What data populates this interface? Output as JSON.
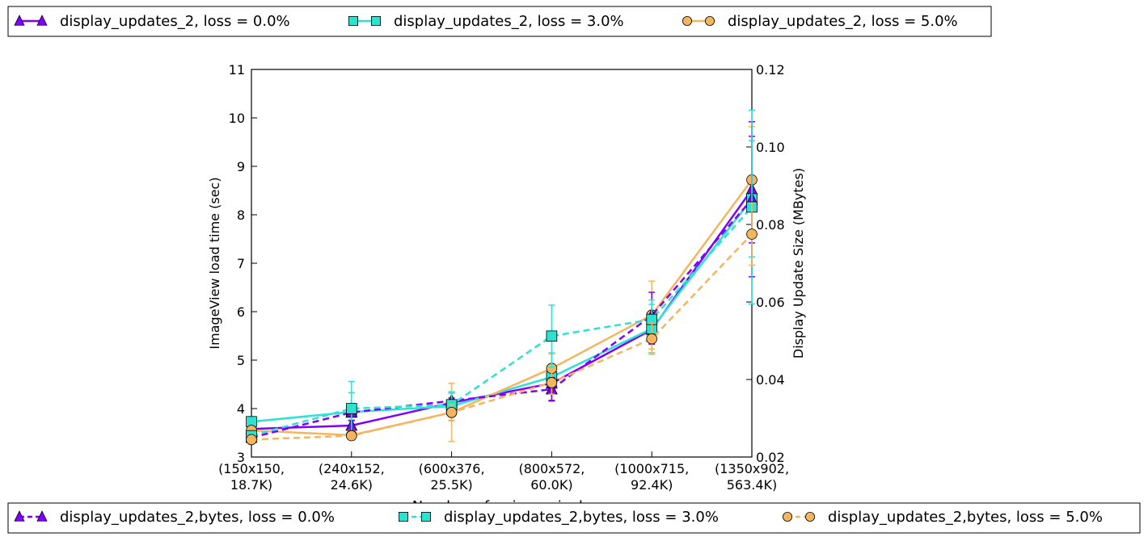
{
  "chart_data": {
    "type": "line",
    "title": "",
    "xlabel": "Number of unique pixels",
    "ylabel": "ImageView load time (sec)",
    "y2label": "Display Update Size (MBytes)",
    "categories": [
      [
        "(150x150,",
        "18.7K)"
      ],
      [
        "(240x152,",
        "24.6K)"
      ],
      [
        "(600x376,",
        "25.5K)"
      ],
      [
        "(800x572,",
        "60.0K)"
      ],
      [
        "(1000x715,",
        "92.4K)"
      ],
      [
        "(1350x902,",
        "563.4K)"
      ]
    ],
    "ylim": [
      3,
      11
    ],
    "y_ticks": [
      "3",
      "4",
      "5",
      "6",
      "7",
      "8",
      "9",
      "10",
      "11"
    ],
    "y2lim": [
      0.02,
      0.12
    ],
    "y2_ticks": [
      "0.02",
      "0.04",
      "0.06",
      "0.08",
      "0.10",
      "0.12"
    ],
    "grid": false,
    "series": [
      {
        "name": "display_updates_2, loss = 0.0%",
        "axis": "left",
        "style": "solid",
        "marker": "triangle",
        "color": "#8000ff",
        "values": [
          3.58,
          3.65,
          4.12,
          4.52,
          5.63,
          8.52
        ],
        "err": [
          0.05,
          0.1,
          0.1,
          0.35,
          0.3,
          1.1
        ]
      },
      {
        "name": "display_updates_2, loss = 3.0%",
        "axis": "left",
        "style": "solid",
        "marker": "square",
        "color": "#2de2d0",
        "values": [
          3.73,
          3.93,
          4.05,
          4.65,
          5.65,
          8.33
        ],
        "err": [
          0.1,
          0.4,
          0.3,
          0.5,
          0.5,
          1.2
        ]
      },
      {
        "name": "display_updates_2, loss = 5.0%",
        "axis": "left",
        "style": "solid",
        "marker": "circle",
        "color": "#f5b55e",
        "values": [
          3.55,
          3.45,
          3.92,
          4.83,
          5.93,
          8.72
        ],
        "err": [
          0.05,
          0.1,
          0.6,
          0.3,
          0.7,
          1.1
        ]
      },
      {
        "name": "display_updates_2,bytes, loss = 0.0%",
        "axis": "right",
        "style": "dashed",
        "marker": "triangle",
        "color": "#8000ff",
        "values": [
          0.025,
          0.0315,
          0.0345,
          0.0375,
          0.0565,
          0.0865
        ],
        "err": [
          0.001,
          0.002,
          0.002,
          0.003,
          0.006,
          0.02
        ]
      },
      {
        "name": "display_updates_2,bytes, loss = 3.0%",
        "axis": "right",
        "style": "dashed",
        "marker": "square",
        "color": "#2de2d0",
        "values": [
          0.0255,
          0.0325,
          0.0335,
          0.0512,
          0.0555,
          0.0845
        ],
        "err": [
          0.001,
          0.007,
          0.003,
          0.008,
          0.005,
          0.025
        ]
      },
      {
        "name": "display_updates_2,bytes, loss = 5.0%",
        "axis": "right",
        "style": "dashed",
        "marker": "circle",
        "color": "#f5b55e",
        "values": [
          0.0245,
          0.0255,
          0.0315,
          0.0392,
          0.0505,
          0.0775
        ],
        "err": [
          0.001,
          0.001,
          0.002,
          0.003,
          0.004,
          0.008
        ]
      }
    ],
    "legend_top": {
      "position": "top"
    },
    "legend_bottom": {
      "position": "bottom"
    }
  }
}
